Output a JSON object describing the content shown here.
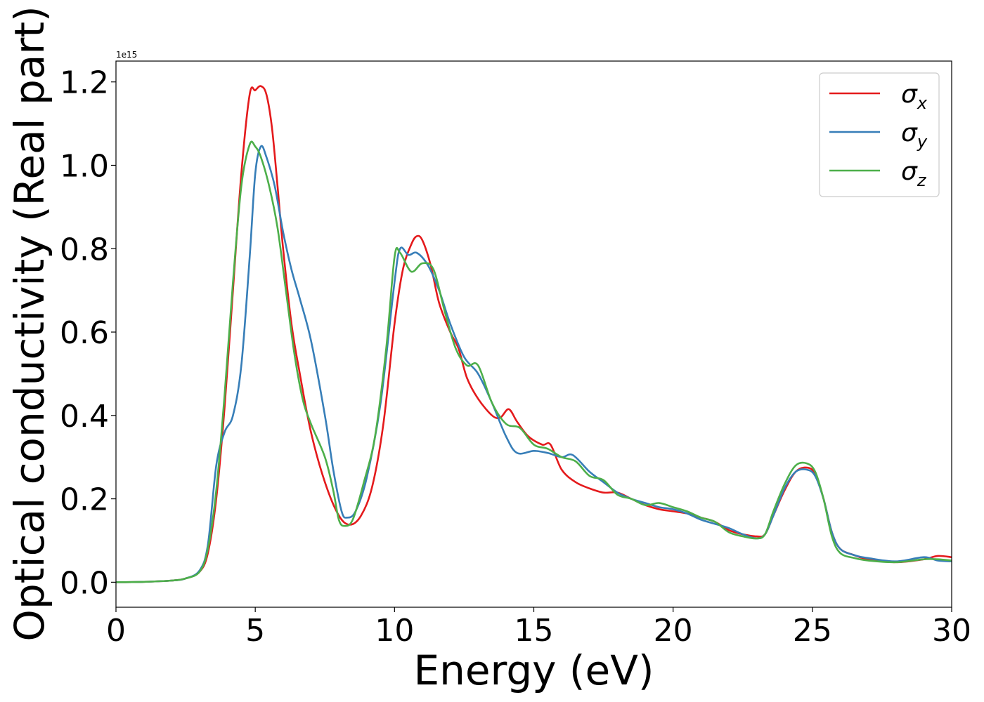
{
  "chart_data": {
    "type": "line",
    "xlabel": "Energy (eV)",
    "ylabel": "Optical conductivity (Real part)",
    "offset_text": "1e15",
    "xlim": [
      0,
      30
    ],
    "ylim": [
      -0.06,
      1.25
    ],
    "x_ticks": [
      0,
      5,
      10,
      15,
      20,
      25,
      30
    ],
    "x_tick_labels": [
      "0",
      "5",
      "10",
      "15",
      "20",
      "25",
      "30"
    ],
    "y_ticks": [
      0.0,
      0.2,
      0.4,
      0.6,
      0.8,
      1.0,
      1.2
    ],
    "y_tick_labels": [
      "0.0",
      "0.2",
      "0.4",
      "0.6",
      "0.8",
      "1.0",
      "1.2"
    ],
    "legend_position": "top-right",
    "grid": false,
    "series": [
      {
        "name": "σx",
        "legend_base": "σ",
        "legend_sub": "x",
        "color": "#e41a1c",
        "points": [
          [
            0,
            0
          ],
          [
            1,
            0.001
          ],
          [
            2,
            0.004
          ],
          [
            2.5,
            0.009
          ],
          [
            3,
            0.025
          ],
          [
            3.3,
            0.07
          ],
          [
            3.6,
            0.2
          ],
          [
            3.9,
            0.42
          ],
          [
            4.2,
            0.7
          ],
          [
            4.5,
            0.98
          ],
          [
            4.8,
            1.17
          ],
          [
            5.0,
            1.18
          ],
          [
            5.2,
            1.19
          ],
          [
            5.4,
            1.17
          ],
          [
            5.6,
            1.09
          ],
          [
            5.8,
            0.95
          ],
          [
            6.0,
            0.8
          ],
          [
            6.3,
            0.62
          ],
          [
            6.6,
            0.5
          ],
          [
            7.0,
            0.36
          ],
          [
            7.5,
            0.24
          ],
          [
            8.0,
            0.16
          ],
          [
            8.4,
            0.138
          ],
          [
            8.8,
            0.16
          ],
          [
            9.2,
            0.23
          ],
          [
            9.6,
            0.38
          ],
          [
            10.0,
            0.62
          ],
          [
            10.3,
            0.75
          ],
          [
            10.6,
            0.81
          ],
          [
            10.8,
            0.83
          ],
          [
            11.0,
            0.82
          ],
          [
            11.3,
            0.76
          ],
          [
            11.6,
            0.67
          ],
          [
            12.0,
            0.6
          ],
          [
            12.3,
            0.56
          ],
          [
            12.6,
            0.49
          ],
          [
            13.0,
            0.44
          ],
          [
            13.5,
            0.4
          ],
          [
            13.8,
            0.395
          ],
          [
            14.1,
            0.415
          ],
          [
            14.4,
            0.385
          ],
          [
            14.8,
            0.35
          ],
          [
            15.3,
            0.33
          ],
          [
            15.6,
            0.33
          ],
          [
            16.0,
            0.27
          ],
          [
            16.5,
            0.24
          ],
          [
            17.0,
            0.225
          ],
          [
            17.5,
            0.215
          ],
          [
            18.0,
            0.215
          ],
          [
            18.5,
            0.2
          ],
          [
            19.0,
            0.185
          ],
          [
            19.5,
            0.175
          ],
          [
            20.0,
            0.17
          ],
          [
            20.5,
            0.165
          ],
          [
            21.0,
            0.155
          ],
          [
            21.5,
            0.145
          ],
          [
            22.0,
            0.125
          ],
          [
            22.5,
            0.115
          ],
          [
            23.0,
            0.11
          ],
          [
            23.3,
            0.115
          ],
          [
            23.6,
            0.16
          ],
          [
            24.0,
            0.22
          ],
          [
            24.4,
            0.265
          ],
          [
            24.8,
            0.275
          ],
          [
            25.1,
            0.26
          ],
          [
            25.4,
            0.2
          ],
          [
            25.7,
            0.12
          ],
          [
            26.0,
            0.08
          ],
          [
            26.5,
            0.065
          ],
          [
            27.0,
            0.055
          ],
          [
            28.0,
            0.048
          ],
          [
            29.0,
            0.055
          ],
          [
            29.5,
            0.063
          ],
          [
            30.0,
            0.06
          ]
        ]
      },
      {
        "name": "σy",
        "legend_base": "σ",
        "legend_sub": "y",
        "color": "#377eb8",
        "points": [
          [
            0,
            0
          ],
          [
            1,
            0.001
          ],
          [
            2,
            0.004
          ],
          [
            2.5,
            0.009
          ],
          [
            3,
            0.028
          ],
          [
            3.3,
            0.09
          ],
          [
            3.6,
            0.28
          ],
          [
            3.9,
            0.36
          ],
          [
            4.2,
            0.4
          ],
          [
            4.5,
            0.52
          ],
          [
            4.8,
            0.78
          ],
          [
            5.0,
            0.98
          ],
          [
            5.2,
            1.045
          ],
          [
            5.4,
            1.02
          ],
          [
            5.7,
            0.95
          ],
          [
            6.0,
            0.84
          ],
          [
            6.3,
            0.75
          ],
          [
            6.6,
            0.68
          ],
          [
            7.0,
            0.58
          ],
          [
            7.5,
            0.4
          ],
          [
            7.8,
            0.27
          ],
          [
            8.1,
            0.17
          ],
          [
            8.3,
            0.155
          ],
          [
            8.6,
            0.17
          ],
          [
            9.0,
            0.25
          ],
          [
            9.5,
            0.43
          ],
          [
            10.0,
            0.72
          ],
          [
            10.2,
            0.8
          ],
          [
            10.5,
            0.785
          ],
          [
            10.8,
            0.79
          ],
          [
            11.2,
            0.76
          ],
          [
            11.6,
            0.7
          ],
          [
            12.0,
            0.62
          ],
          [
            12.5,
            0.54
          ],
          [
            13.0,
            0.5
          ],
          [
            13.5,
            0.43
          ],
          [
            14.0,
            0.35
          ],
          [
            14.4,
            0.31
          ],
          [
            15.0,
            0.315
          ],
          [
            15.5,
            0.31
          ],
          [
            16.0,
            0.3
          ],
          [
            16.4,
            0.305
          ],
          [
            17.0,
            0.265
          ],
          [
            17.5,
            0.24
          ],
          [
            18.0,
            0.215
          ],
          [
            18.5,
            0.2
          ],
          [
            19.0,
            0.19
          ],
          [
            19.5,
            0.18
          ],
          [
            20.0,
            0.175
          ],
          [
            20.5,
            0.165
          ],
          [
            21.0,
            0.15
          ],
          [
            21.5,
            0.14
          ],
          [
            22.0,
            0.13
          ],
          [
            22.5,
            0.115
          ],
          [
            23.0,
            0.105
          ],
          [
            23.3,
            0.115
          ],
          [
            23.6,
            0.16
          ],
          [
            24.0,
            0.225
          ],
          [
            24.4,
            0.265
          ],
          [
            24.8,
            0.27
          ],
          [
            25.1,
            0.255
          ],
          [
            25.4,
            0.2
          ],
          [
            25.7,
            0.12
          ],
          [
            26.0,
            0.08
          ],
          [
            26.5,
            0.065
          ],
          [
            27.0,
            0.058
          ],
          [
            28.0,
            0.05
          ],
          [
            29.0,
            0.06
          ],
          [
            29.5,
            0.052
          ],
          [
            30.0,
            0.05
          ]
        ]
      },
      {
        "name": "σz",
        "legend_base": "σ",
        "legend_sub": "z",
        "color": "#4daf4a",
        "points": [
          [
            0,
            0
          ],
          [
            1,
            0.001
          ],
          [
            2,
            0.004
          ],
          [
            2.5,
            0.009
          ],
          [
            3,
            0.025
          ],
          [
            3.3,
            0.08
          ],
          [
            3.6,
            0.22
          ],
          [
            3.9,
            0.45
          ],
          [
            4.2,
            0.72
          ],
          [
            4.5,
            0.95
          ],
          [
            4.8,
            1.05
          ],
          [
            5.0,
            1.045
          ],
          [
            5.2,
            1.02
          ],
          [
            5.5,
            0.95
          ],
          [
            5.8,
            0.85
          ],
          [
            6.1,
            0.7
          ],
          [
            6.4,
            0.55
          ],
          [
            6.7,
            0.44
          ],
          [
            7.0,
            0.38
          ],
          [
            7.5,
            0.3
          ],
          [
            7.8,
            0.22
          ],
          [
            8.0,
            0.15
          ],
          [
            8.2,
            0.135
          ],
          [
            8.5,
            0.15
          ],
          [
            8.9,
            0.24
          ],
          [
            9.3,
            0.35
          ],
          [
            9.7,
            0.56
          ],
          [
            10.0,
            0.78
          ],
          [
            10.2,
            0.79
          ],
          [
            10.6,
            0.745
          ],
          [
            11.0,
            0.765
          ],
          [
            11.4,
            0.75
          ],
          [
            11.8,
            0.65
          ],
          [
            12.2,
            0.56
          ],
          [
            12.6,
            0.52
          ],
          [
            13.0,
            0.52
          ],
          [
            13.5,
            0.43
          ],
          [
            14.0,
            0.38
          ],
          [
            14.5,
            0.37
          ],
          [
            15.0,
            0.33
          ],
          [
            15.5,
            0.32
          ],
          [
            16.0,
            0.3
          ],
          [
            16.5,
            0.29
          ],
          [
            17.0,
            0.255
          ],
          [
            17.5,
            0.245
          ],
          [
            18.0,
            0.21
          ],
          [
            18.5,
            0.2
          ],
          [
            19.0,
            0.185
          ],
          [
            19.5,
            0.19
          ],
          [
            20.0,
            0.18
          ],
          [
            20.5,
            0.17
          ],
          [
            21.0,
            0.155
          ],
          [
            21.5,
            0.145
          ],
          [
            22.0,
            0.12
          ],
          [
            22.5,
            0.11
          ],
          [
            23.0,
            0.105
          ],
          [
            23.3,
            0.115
          ],
          [
            23.6,
            0.17
          ],
          [
            24.0,
            0.235
          ],
          [
            24.4,
            0.28
          ],
          [
            24.8,
            0.285
          ],
          [
            25.1,
            0.265
          ],
          [
            25.4,
            0.2
          ],
          [
            25.7,
            0.11
          ],
          [
            26.0,
            0.07
          ],
          [
            26.5,
            0.058
          ],
          [
            27.0,
            0.052
          ],
          [
            28.0,
            0.048
          ],
          [
            29.0,
            0.055
          ],
          [
            29.5,
            0.055
          ],
          [
            30.0,
            0.052
          ]
        ]
      }
    ]
  }
}
